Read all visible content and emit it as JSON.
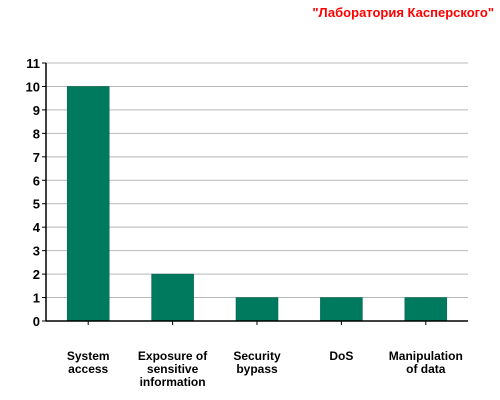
{
  "brand_text": "\"Лаборатория Касперского\"",
  "colors": {
    "bar": "#007a5e",
    "grid": "#b8b8b8",
    "axis": "#000000",
    "brand": "#ff0000"
  },
  "chart_data": {
    "type": "bar",
    "title": "",
    "xlabel": "",
    "ylabel": "",
    "categories": [
      [
        "System",
        "access"
      ],
      [
        "Exposure of",
        "sensitive",
        "information"
      ],
      [
        "Security",
        "bypass"
      ],
      [
        "DoS"
      ],
      [
        "Manipulation",
        "of data"
      ]
    ],
    "values": [
      10,
      2,
      1,
      1,
      1
    ],
    "ylim": [
      0,
      11
    ],
    "yticks": [
      0,
      1,
      2,
      3,
      4,
      5,
      6,
      7,
      8,
      9,
      10,
      11
    ],
    "grid": true,
    "legend": "none"
  }
}
